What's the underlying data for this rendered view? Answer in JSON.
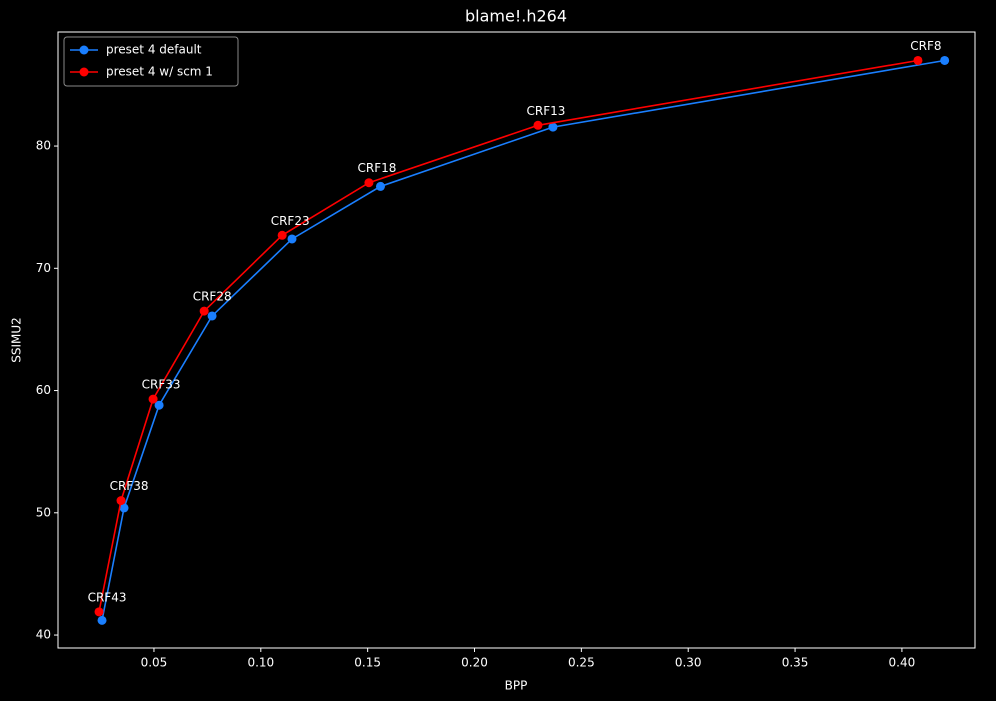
{
  "chart_data": {
    "type": "line",
    "title": "blame!.h264",
    "x_label": "BPP",
    "y_label": "SSIMU2",
    "series": [
      {
        "name": "preset 4 default",
        "color": "#1a7fff",
        "x": [
          0.0257,
          0.036,
          0.0524,
          0.0772,
          0.1146,
          0.156,
          0.2367,
          0.42
        ],
        "values": [
          41.2,
          50.4,
          58.8,
          66.1,
          72.4,
          76.7,
          81.55,
          87.0
        ]
      },
      {
        "name": "preset 4 w/ scm 1",
        "color": "#ff0000",
        "x": [
          0.0243,
          0.0346,
          0.0496,
          0.0735,
          0.11,
          0.1506,
          0.2297,
          0.4075
        ],
        "values": [
          41.9,
          51.0,
          59.3,
          66.5,
          72.7,
          77.0,
          81.7,
          87.0
        ]
      }
    ],
    "annotations": [
      "CRF43",
      "CRF38",
      "CRF33",
      "CRF28",
      "CRF23",
      "CRF18",
      "CRF13",
      "CRF8"
    ],
    "xlim": [
      0.0051,
      0.4342
    ],
    "ylim": [
      38.94,
      89.33
    ],
    "xticks": [
      0.05,
      {
        "value": 0.1,
        "label": "0.10"
      },
      0.15,
      {
        "value": 0.2,
        "label": "0.20"
      },
      0.25,
      {
        "value": 0.3,
        "label": "0.30"
      },
      0.35,
      {
        "value": 0.4,
        "label": "0.40"
      }
    ],
    "yticks": [
      40,
      50,
      60,
      70,
      80
    ],
    "grid": false,
    "legend": "upper left"
  }
}
